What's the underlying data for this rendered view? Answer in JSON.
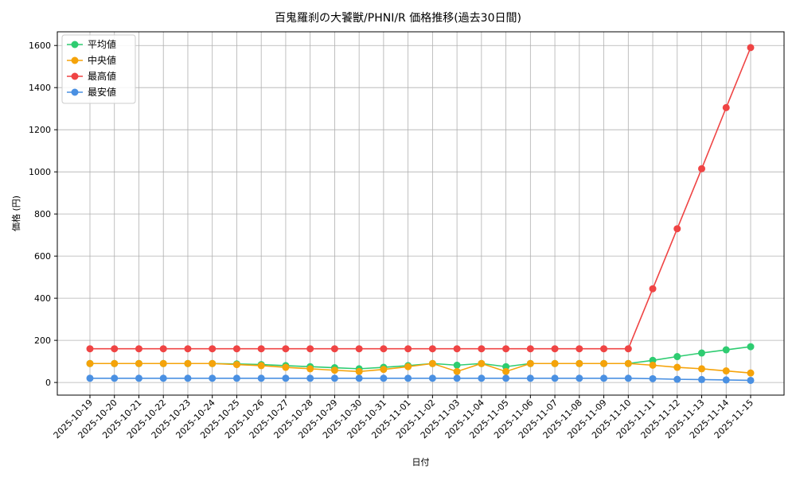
{
  "chart_data": {
    "type": "line",
    "title": "百鬼羅刹の大饕獣/PHNI/R 価格推移(過去30日間)",
    "xlabel": "日付",
    "ylabel": "価格 (円)",
    "ylim": [
      -60,
      1665
    ],
    "yticks": [
      0,
      200,
      400,
      600,
      800,
      1000,
      1200,
      1400,
      1600
    ],
    "grid": true,
    "legend_position": "upper left",
    "categories": [
      "2025-10-19",
      "2025-10-20",
      "2025-10-21",
      "2025-10-22",
      "2025-10-23",
      "2025-10-24",
      "2025-10-25",
      "2025-10-26",
      "2025-10-27",
      "2025-10-28",
      "2025-10-29",
      "2025-10-30",
      "2025-10-31",
      "2025-11-01",
      "2025-11-02",
      "2025-11-03",
      "2025-11-04",
      "2025-11-05",
      "2025-11-06",
      "2025-11-07",
      "2025-11-08",
      "2025-11-09",
      "2025-11-10",
      "2025-11-11",
      "2025-11-12",
      "2025-11-13",
      "2025-11-14",
      "2025-11-15"
    ],
    "series": [
      {
        "name": "平均値",
        "color": "#2ecc71",
        "values": [
          90,
          90,
          90,
          90,
          90,
          90,
          88,
          85,
          80,
          75,
          70,
          65,
          72,
          80,
          90,
          82,
          90,
          75,
          90,
          90,
          90,
          90,
          90,
          105,
          123,
          140,
          155,
          170
        ]
      },
      {
        "name": "中央値",
        "color": "#f5a30a",
        "values": [
          90,
          90,
          90,
          90,
          90,
          90,
          85,
          80,
          72,
          65,
          58,
          52,
          62,
          75,
          90,
          52,
          90,
          52,
          90,
          90,
          90,
          90,
          90,
          82,
          72,
          65,
          55,
          45
        ]
      },
      {
        "name": "最高値",
        "color": "#ef4444",
        "values": [
          160,
          160,
          160,
          160,
          160,
          160,
          160,
          160,
          160,
          160,
          160,
          160,
          160,
          160,
          160,
          160,
          160,
          160,
          160,
          160,
          160,
          160,
          160,
          445,
          730,
          1015,
          1305,
          1590
        ]
      },
      {
        "name": "最安値",
        "color": "#4a90e2",
        "values": [
          20,
          20,
          20,
          20,
          20,
          20,
          20,
          20,
          20,
          20,
          20,
          20,
          20,
          20,
          20,
          20,
          20,
          20,
          20,
          20,
          20,
          20,
          20,
          18,
          15,
          14,
          12,
          10
        ]
      }
    ]
  }
}
